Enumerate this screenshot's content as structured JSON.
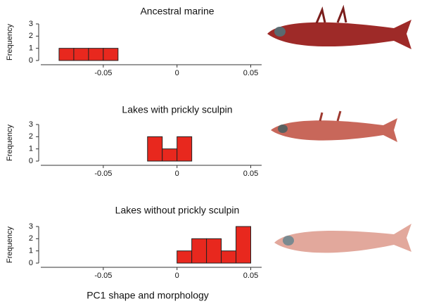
{
  "chart_data": [
    {
      "type": "histogram",
      "title": "Ancestral marine",
      "y_label": "Frequency",
      "bins": [
        -0.08,
        -0.07,
        -0.06,
        -0.05,
        -0.04
      ],
      "counts": [
        1,
        1,
        1,
        1
      ],
      "color": "#e8281e",
      "xlim": [
        -0.09,
        0.055
      ],
      "xticks": [
        -0.05,
        0,
        0.05
      ],
      "ylim": [
        0,
        3
      ],
      "yticks": [
        0,
        1,
        2,
        3
      ]
    },
    {
      "type": "histogram",
      "title": "Lakes with prickly sculpin",
      "y_label": "Frequency",
      "bins": [
        -0.02,
        -0.01,
        0,
        0.01
      ],
      "counts": [
        2,
        1,
        2
      ],
      "color": "#e8281e",
      "xlim": [
        -0.09,
        0.055
      ],
      "xticks": [
        -0.05,
        0,
        0.05
      ],
      "ylim": [
        0,
        3
      ],
      "yticks": [
        0,
        1,
        2,
        3
      ]
    },
    {
      "type": "histogram",
      "title": "Lakes without prickly sculpin",
      "y_label": "Frequency",
      "x_label": "PC1 shape and morphology",
      "bins": [
        0,
        0.01,
        0.02,
        0.03,
        0.04,
        0.05
      ],
      "counts": [
        1,
        2,
        2,
        1,
        3
      ],
      "color": "#e8281e",
      "xlim": [
        -0.09,
        0.055
      ],
      "xticks": [
        -0.05,
        0,
        0.05
      ],
      "ylim": [
        0,
        3
      ],
      "yticks": [
        0,
        1,
        2,
        3
      ]
    }
  ]
}
